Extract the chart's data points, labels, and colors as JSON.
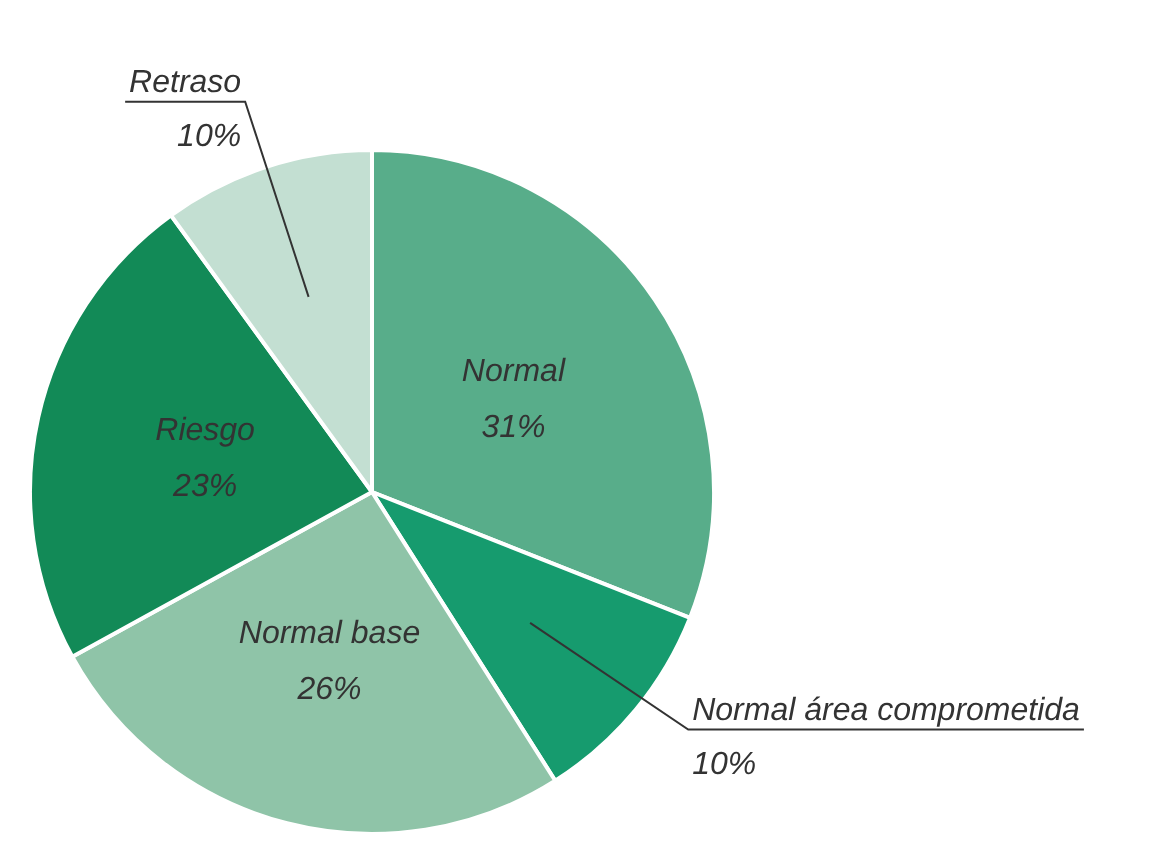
{
  "chart_data": {
    "type": "pie",
    "categories": [
      "Normal",
      "Normal área comprometida",
      "Normal base",
      "Riesgo",
      "Retraso"
    ],
    "values": [
      31,
      10,
      26,
      23,
      10
    ],
    "colors": [
      "#58ad8a",
      "#169b6e",
      "#8fc4a8",
      "#128a57",
      "#c3dfd2"
    ],
    "value_labels": [
      "31%",
      "10%",
      "26%",
      "23%",
      "10%"
    ],
    "legend": false
  }
}
